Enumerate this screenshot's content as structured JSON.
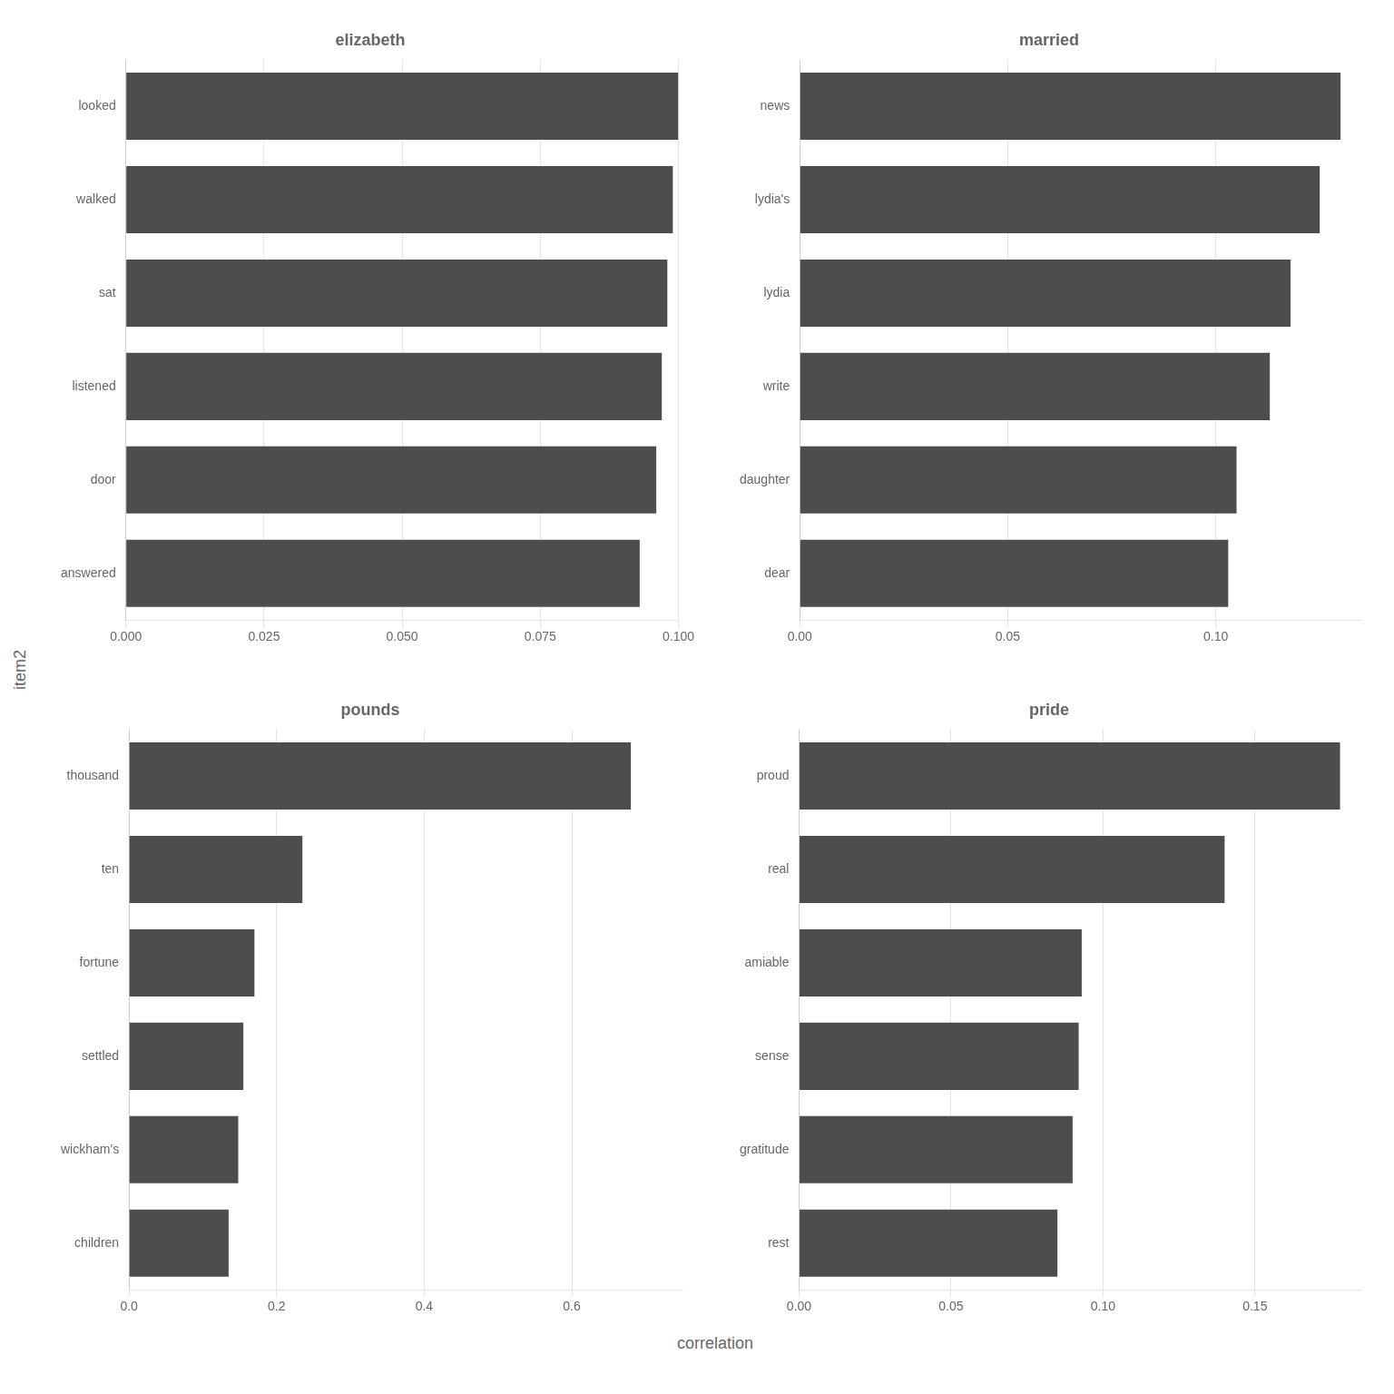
{
  "xlabel": "correlation",
  "ylabel": "item2",
  "chart_data": [
    {
      "type": "bar",
      "orientation": "horizontal",
      "title": "elizabeth",
      "categories": [
        "answered",
        "door",
        "listened",
        "sat",
        "walked",
        "looked"
      ],
      "values": [
        0.093,
        0.096,
        0.097,
        0.098,
        0.099,
        0.1
      ],
      "color": "#4d4d4d",
      "xlim": [
        0,
        0.1
      ],
      "xticks": [
        {
          "value": 0,
          "label": "0.000"
        },
        0.025,
        {
          "value": 0.05,
          "label": "0.050"
        },
        0.075,
        {
          "value": 0.1,
          "label": "0.100"
        }
      ],
      "grid": "x"
    },
    {
      "type": "bar",
      "orientation": "horizontal",
      "title": "married",
      "categories": [
        "dear",
        "daughter",
        "write",
        "lydia",
        "lydia's",
        "news"
      ],
      "values": [
        0.103,
        0.105,
        0.113,
        0.118,
        0.125,
        0.13
      ],
      "color": "#4d4d4d",
      "xlim": [
        0,
        0.135
      ],
      "xticks": [
        {
          "value": 0,
          "label": "0.00"
        },
        0.05,
        {
          "value": 0.1,
          "label": "0.10"
        }
      ],
      "grid": "x"
    },
    {
      "type": "bar",
      "orientation": "horizontal",
      "title": "pounds",
      "categories": [
        "children",
        "wickham's",
        "settled",
        "fortune",
        "ten",
        "thousand"
      ],
      "values": [
        0.135,
        0.148,
        0.155,
        0.17,
        0.235,
        0.68
      ],
      "color": "#4d4d4d",
      "xlim": [
        0,
        0.75
      ],
      "xticks": [
        {
          "value": 0,
          "label": "0.0"
        },
        0.2,
        0.4,
        0.6
      ],
      "grid": "x"
    },
    {
      "type": "bar",
      "orientation": "horizontal",
      "title": "pride",
      "categories": [
        "rest",
        "gratitude",
        "sense",
        "amiable",
        "real",
        "proud"
      ],
      "values": [
        0.085,
        0.09,
        0.092,
        0.093,
        0.14,
        0.178
      ],
      "color": "#4d4d4d",
      "xlim": [
        0,
        0.185
      ],
      "xticks": [
        {
          "value": 0,
          "label": "0.00"
        },
        0.05,
        {
          "value": 0.1,
          "label": "0.10"
        },
        0.15
      ],
      "grid": "x"
    }
  ]
}
